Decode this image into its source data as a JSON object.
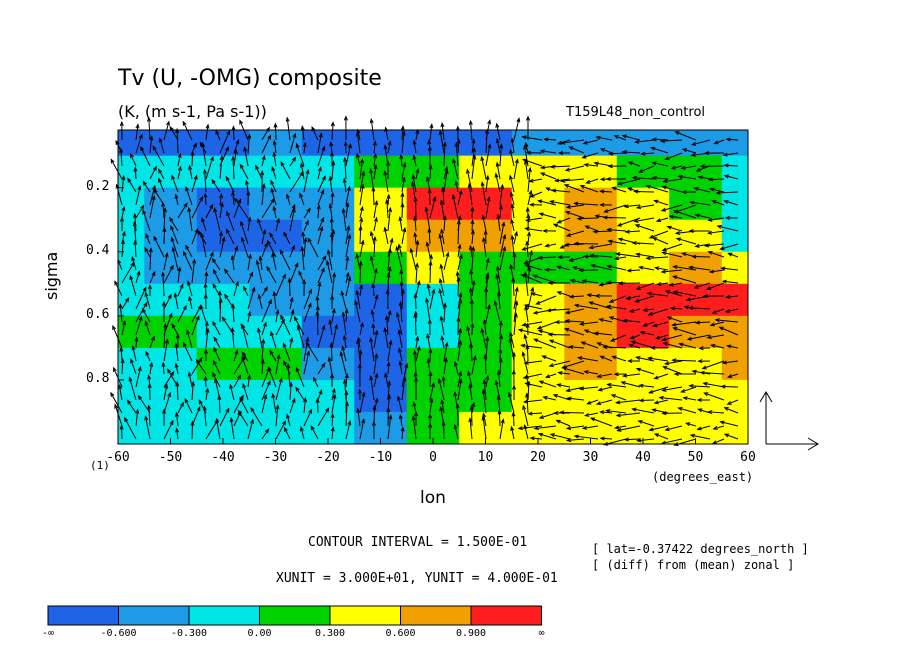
{
  "chart_data": {
    "type": "heatmap",
    "title": "Tv (U, -OMG) composite",
    "subtitle": "(K, (m s-1, Pa s-1))",
    "run_name": "T159L48_non_control",
    "xlabel": "lon",
    "x_units": "(degrees_east)",
    "ylabel": "sigma",
    "xlim": [
      -60,
      60
    ],
    "ylim": [
      1.0,
      0.02
    ],
    "x_ticks": [
      "-60",
      "-50",
      "-40",
      "-30",
      "-20",
      "-10",
      "0",
      "10",
      "20",
      "30",
      "40",
      "50",
      "60"
    ],
    "y_ticks": [
      "0.2",
      "0.4",
      "0.6",
      "0.8"
    ],
    "bottom_level_label": "(1)",
    "contour_interval": "CONTOUR INTERVAL = 1.500E-01",
    "vector_units": "XUNIT = 3.000E+01, YUNIT = 4.000E-01",
    "info_lines": [
      "[ lat=-0.37422 degrees_north ]",
      "[ (diff) from (mean) zonal ]"
    ],
    "colorbar": {
      "labels": [
        "-∞",
        "-0.600",
        "-0.300",
        "0.00",
        "0.300",
        "0.600",
        "0.900",
        "∞"
      ],
      "colors": [
        "#1e64e6",
        "#1e9be6",
        "#00e6e6",
        "#00d200",
        "#ffff00",
        "#f0a000",
        "#ff1e1e"
      ]
    },
    "field_lon": [
      -60,
      -50,
      -40,
      -30,
      -20,
      -10,
      0,
      10,
      20,
      30,
      40,
      50,
      60
    ],
    "field_sigma": [
      0.05,
      0.15,
      0.25,
      0.35,
      0.45,
      0.55,
      0.65,
      0.75,
      0.85,
      0.95
    ],
    "field_values": [
      [
        -0.7,
        -0.7,
        -0.7,
        -0.6,
        -0.7,
        -0.7,
        -0.8,
        -0.7,
        -0.6,
        -0.6,
        -0.5,
        -0.6,
        -0.6
      ],
      [
        -0.1,
        -0.1,
        -0.2,
        -0.3,
        -0.1,
        0.1,
        0.0,
        0.3,
        0.4,
        0.5,
        0.2,
        0.0,
        -0.1
      ],
      [
        -0.2,
        -0.5,
        -0.7,
        -0.6,
        -0.4,
        0.5,
        0.9,
        0.9,
        0.5,
        0.6,
        0.4,
        0.1,
        -0.2
      ],
      [
        -0.1,
        -0.5,
        -0.7,
        -0.7,
        -0.5,
        0.5,
        0.7,
        0.6,
        0.4,
        0.6,
        0.4,
        0.3,
        -0.1
      ],
      [
        -0.2,
        -0.5,
        -0.6,
        -0.6,
        -0.5,
        0.2,
        0.3,
        0.1,
        0.0,
        0.2,
        0.5,
        0.6,
        0.5
      ],
      [
        -0.2,
        -0.2,
        -0.3,
        -0.4,
        -0.6,
        -0.7,
        -0.3,
        0.2,
        0.4,
        0.8,
        0.9,
        1.0,
        1.0
      ],
      [
        0.0,
        0.1,
        -0.1,
        -0.3,
        -0.7,
        -0.8,
        -0.1,
        0.1,
        0.5,
        0.8,
        0.9,
        0.7,
        0.6
      ],
      [
        -0.1,
        -0.1,
        0.0,
        0.0,
        -0.4,
        -0.7,
        0.1,
        0.0,
        0.5,
        0.6,
        0.5,
        0.4,
        0.6
      ],
      [
        -0.1,
        -0.2,
        -0.1,
        -0.2,
        -0.2,
        -0.7,
        0.0,
        0.2,
        0.4,
        0.4,
        0.3,
        0.3,
        0.3
      ],
      [
        -0.1,
        -0.1,
        -0.2,
        -0.2,
        -0.1,
        -0.5,
        0.1,
        0.4,
        0.4,
        0.3,
        0.3,
        0.4,
        0.4
      ]
    ],
    "levels": [
      -0.6,
      -0.3,
      0.0,
      0.3,
      0.6,
      0.9
    ],
    "grid": false,
    "vector_reference": "bottom-right"
  }
}
